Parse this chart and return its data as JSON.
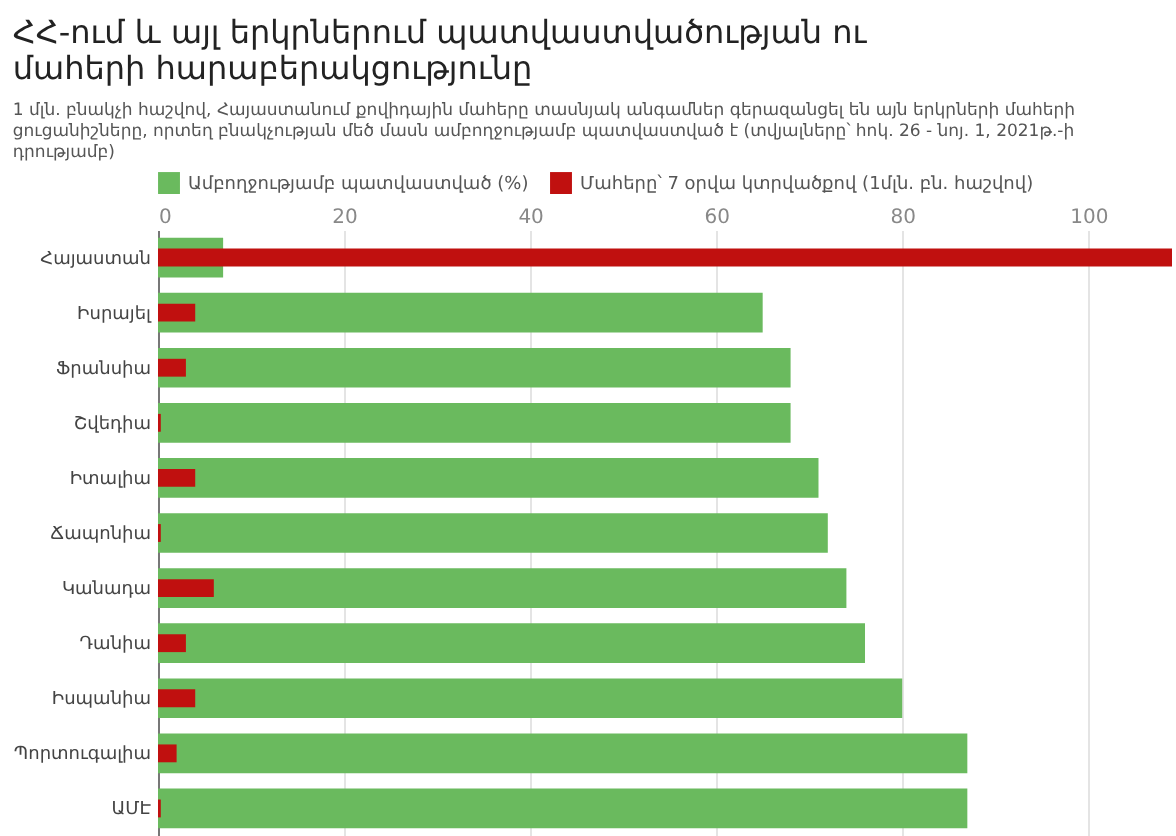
{
  "chart_data": {
    "type": "bar",
    "orientation": "horizontal",
    "title": "ՀՀ-ում և այլ երկրներում պատվաստվածության ու մահերի հարաբերակցությունը",
    "subtitle": "1 մլն. բնակչի հաշվով, Հայաստանում քովիդային մահերը տասնյակ անգամներ գերազանցել են այն երկրների մահերի ցուցանիշները, որտեղ բնակչության մեծ մասն ամբողջությամբ պատվաստված է (տվյալները՝ հոկ. 26 - նոյ. 1, 2021թ.-ի դրությամբ)",
    "categories": [
      "Հայաստան",
      "Իսրայել",
      "Ֆրանսիա",
      "Շվեդիա",
      "Իտալիա",
      "Ճապոնիա",
      "Կանադա",
      "Դանիա",
      "Իսպանիա",
      "Պորտուգալիա",
      "ԱՄԷ"
    ],
    "series": [
      {
        "name": "Ամբողջությամբ պատվաստված (%)",
        "color": "#6aba5e",
        "values": [
          7,
          65,
          68,
          68,
          71,
          72,
          74,
          76,
          80,
          87,
          87
        ]
      },
      {
        "name": "Մահերը՝ 7 օրվա կտրվածքով (1մլն. բն. հաշվով)",
        "color": "#c0100f",
        "values": [
          109,
          4,
          3,
          0.3,
          4,
          0.3,
          6,
          3,
          4,
          2,
          0.3
        ]
      }
    ],
    "xlim": [
      0,
      109
    ],
    "xticks": [
      0,
      20,
      40,
      60,
      80,
      100
    ],
    "grid": "x",
    "legend": "top left"
  }
}
